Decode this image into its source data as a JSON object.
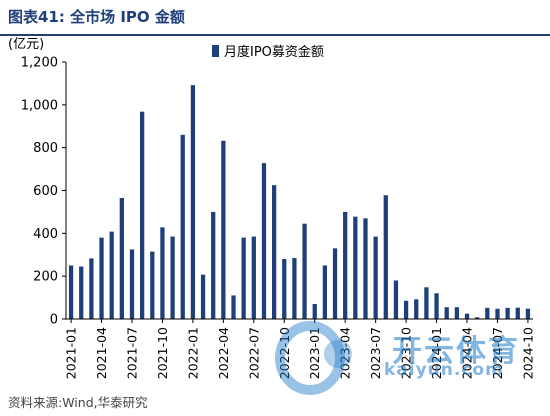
{
  "header": {
    "title": "图表41:  全市场 IPO 金额"
  },
  "footer": {
    "source": "资料来源:Wind,华泰研究"
  },
  "watermark": {
    "cn": "开云体育",
    "url": "kaiyun.com"
  },
  "colors": {
    "bar": "#1f3f7a",
    "title": "#1f3f7a",
    "axis": "#000000"
  },
  "chart_data": {
    "type": "bar",
    "unit_label": "(亿元)",
    "legend": {
      "label": "月度IPO募资金额",
      "position": "top-center"
    },
    "ylim": [
      0,
      1200
    ],
    "yticks": [
      0,
      200,
      400,
      600,
      800,
      1000,
      1200
    ],
    "ytick_labels": [
      "0",
      "200",
      "400",
      "600",
      "800",
      "1,000",
      "1,200"
    ],
    "xtick_labels": [
      "2021-01",
      "2021-04",
      "2021-07",
      "2021-10",
      "2022-01",
      "2022-04",
      "2022-07",
      "2022-10",
      "2023-01",
      "2023-04",
      "2023-07",
      "2023-10",
      "2024-01",
      "2024-04",
      "2024-07",
      "2024-10"
    ],
    "categories": [
      "2021-01",
      "2021-02",
      "2021-03",
      "2021-04",
      "2021-05",
      "2021-06",
      "2021-07",
      "2021-08",
      "2021-09",
      "2021-10",
      "2021-11",
      "2021-12",
      "2022-01",
      "2022-02",
      "2022-03",
      "2022-04",
      "2022-05",
      "2022-06",
      "2022-07",
      "2022-08",
      "2022-09",
      "2022-10",
      "2022-11",
      "2022-12",
      "2023-01",
      "2023-02",
      "2023-03",
      "2023-04",
      "2023-05",
      "2023-06",
      "2023-07",
      "2023-08",
      "2023-09",
      "2023-10",
      "2023-11",
      "2023-12",
      "2024-01",
      "2024-02",
      "2024-03",
      "2024-04",
      "2024-05",
      "2024-06",
      "2024-07",
      "2024-08",
      "2024-09",
      "2024-10"
    ],
    "series": [
      {
        "name": "月度IPO募资金额",
        "values": [
          250,
          245,
          283,
          380,
          408,
          565,
          325,
          968,
          315,
          428,
          385,
          860,
          1092,
          207,
          500,
          832,
          110,
          380,
          385,
          728,
          625,
          280,
          285,
          445,
          70,
          250,
          330,
          500,
          478,
          470,
          385,
          578,
          180,
          85,
          92,
          148,
          120,
          55,
          55,
          25,
          8,
          52,
          48,
          52,
          53,
          48
        ]
      }
    ]
  }
}
